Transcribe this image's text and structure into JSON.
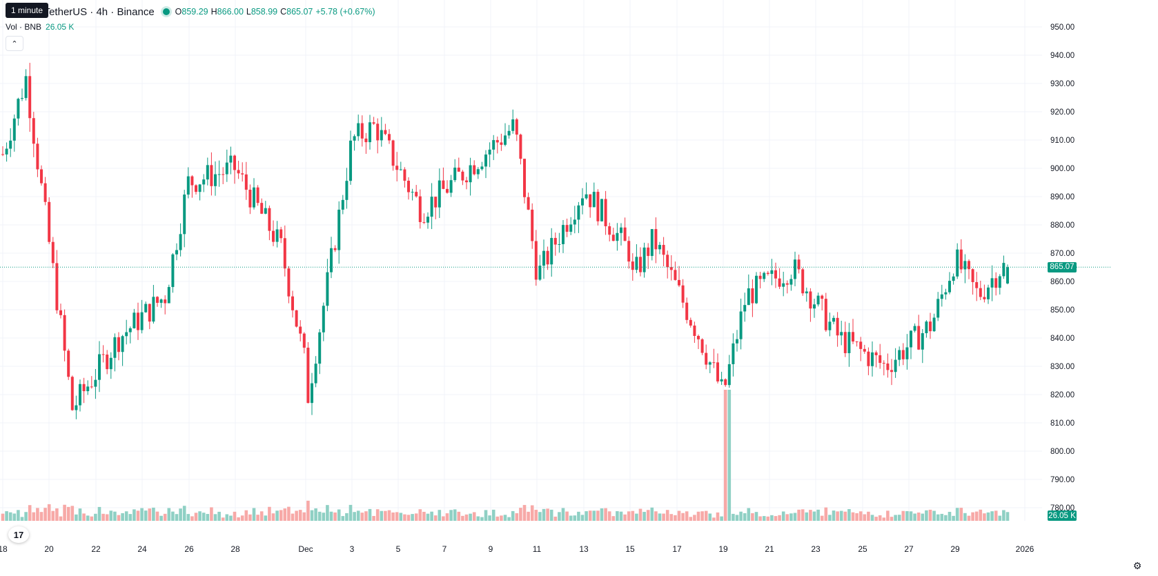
{
  "header": {
    "symbol": "e Coin / TetherUS · 4h · Binance",
    "open_label": "O",
    "open": "859.29",
    "high_label": "H",
    "high": "866.00",
    "low_label": "L",
    "low": "858.99",
    "close_label": "C",
    "close": "865.07",
    "change": "+5.78 (+0.67%)"
  },
  "tooltip": "1 minute",
  "volume": {
    "label": "Vol · BNB",
    "value": "26.05 K"
  },
  "collapse_icon": "chevron-up-icon",
  "last_price": "865.07",
  "last_volume": "26.05 K",
  "logo_icon": "tradingview-logo-icon",
  "settings_icon": "gear-icon",
  "colors": {
    "up": "#089981",
    "down": "#f23645",
    "up_vol": "#8fd0c4",
    "down_vol": "#f7a9a7",
    "grid": "#f0f3fa"
  },
  "chart_data": {
    "type": "candlestick",
    "price_axis": [
      "950.00",
      "940.00",
      "930.00",
      "920.00",
      "910.00",
      "900.00",
      "890.00",
      "880.00",
      "870.00",
      "860.00",
      "850.00",
      "840.00",
      "830.00",
      "820.00",
      "810.00",
      "800.00",
      "790.00",
      "780.00"
    ],
    "time_axis": [
      "18",
      "20",
      "22",
      "24",
      "26",
      "28",
      "Dec",
      "3",
      "5",
      "7",
      "9",
      "11",
      "13",
      "15",
      "17",
      "19",
      "21",
      "23",
      "25",
      "27",
      "29",
      "2026"
    ],
    "ylim": [
      776,
      954
    ],
    "interval": "4h",
    "key_points": [
      {
        "t": "Nov 18",
        "price": 905
      },
      {
        "t": "Nov 19",
        "price": 932
      },
      {
        "t": "Nov 21",
        "price": 815
      },
      {
        "t": "Nov 23",
        "price": 840
      },
      {
        "t": "Nov 25",
        "price": 855
      },
      {
        "t": "Nov 26",
        "price": 895
      },
      {
        "t": "Nov 28",
        "price": 900
      },
      {
        "t": "Nov 30",
        "price": 872
      },
      {
        "t": "Dec 1",
        "price": 830
      },
      {
        "t": "Dec 1",
        "price": 815
      },
      {
        "t": "Dec 3",
        "price": 910
      },
      {
        "t": "Dec 4",
        "price": 915
      },
      {
        "t": "Dec 6",
        "price": 885
      },
      {
        "t": "Dec 8",
        "price": 900
      },
      {
        "t": "Dec 10",
        "price": 915
      },
      {
        "t": "Dec 11",
        "price": 862
      },
      {
        "t": "Dec 13",
        "price": 893
      },
      {
        "t": "Dec 15",
        "price": 870
      },
      {
        "t": "Dec 15",
        "price": 860
      },
      {
        "t": "Dec 16",
        "price": 875
      },
      {
        "t": "Dec 18",
        "price": 840
      },
      {
        "t": "Dec 19",
        "price": 820
      },
      {
        "t": "Dec 20",
        "price": 855
      },
      {
        "t": "Dec 22",
        "price": 865
      },
      {
        "t": "Dec 24",
        "price": 840
      },
      {
        "t": "Dec 26",
        "price": 830
      },
      {
        "t": "Dec 28",
        "price": 845
      },
      {
        "t": "Dec 29",
        "price": 868
      },
      {
        "t": "Dec 30",
        "price": 855
      },
      {
        "t": "Dec 31",
        "price": 865
      }
    ]
  }
}
